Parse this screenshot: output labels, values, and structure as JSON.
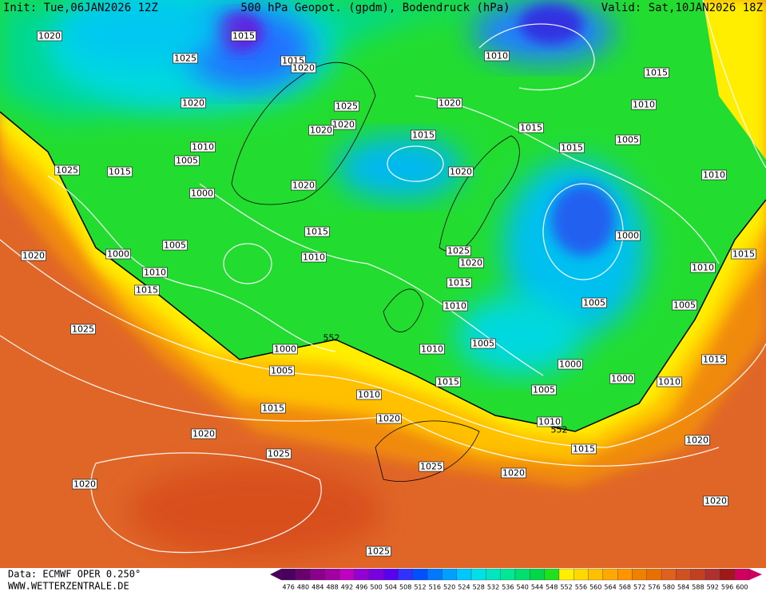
{
  "header": {
    "init": "Init: Tue,06JAN2026 12Z",
    "title": "500 hPa Geopot. (gpdm), Bodendruck (hPa)",
    "valid": "Valid: Sat,10JAN2026 18Z"
  },
  "isobar_labels": [
    1020,
    1015,
    1025,
    1015,
    1020,
    1010,
    1015,
    1020,
    1020,
    1025,
    1010,
    1020,
    1020,
    1015,
    1015,
    1005,
    1010,
    1015,
    1005,
    1025,
    1015,
    1020,
    1010,
    1020,
    1000,
    1015,
    1000,
    1005,
    1025,
    1000,
    1020,
    1010,
    1015,
    1020,
    1010,
    1010,
    1015,
    1015,
    1005,
    1010,
    1005,
    1025,
    552,
    1005,
    1000,
    1010,
    1015,
    1000,
    1005,
    1000,
    1010,
    1015,
    1005,
    1010,
    1015,
    1020,
    1010,
    552,
    1020,
    1015,
    1020,
    1025,
    1025,
    1020,
    1020,
    1020,
    1025
  ],
  "colorbar": {
    "ticks": [
      476,
      480,
      484,
      488,
      492,
      496,
      500,
      504,
      508,
      512,
      516,
      520,
      524,
      528,
      532,
      536,
      540,
      544,
      548,
      552,
      556,
      560,
      564,
      568,
      572,
      576,
      580,
      584,
      588,
      592,
      596,
      600
    ],
    "colors": [
      "#4b0060",
      "#6a006e",
      "#8b008b",
      "#a300a3",
      "#c000c0",
      "#9400d3",
      "#7a00e0",
      "#5a00f0",
      "#3030ff",
      "#0050ff",
      "#0078ff",
      "#00a0ff",
      "#00c8ff",
      "#00e0e8",
      "#00e6c0",
      "#00e896",
      "#00e070",
      "#00d848",
      "#20e020",
      "#fff000",
      "#ffd800",
      "#ffc000",
      "#ffa800",
      "#ff9400",
      "#f08000",
      "#e87000",
      "#e06020",
      "#d05020",
      "#c04020",
      "#b03030",
      "#a01818",
      "#d00060"
    ]
  },
  "footer": {
    "source": "Data: ECMWF OPER 0.250°",
    "site": "WWW.WETTERZENTRALE.DE"
  }
}
